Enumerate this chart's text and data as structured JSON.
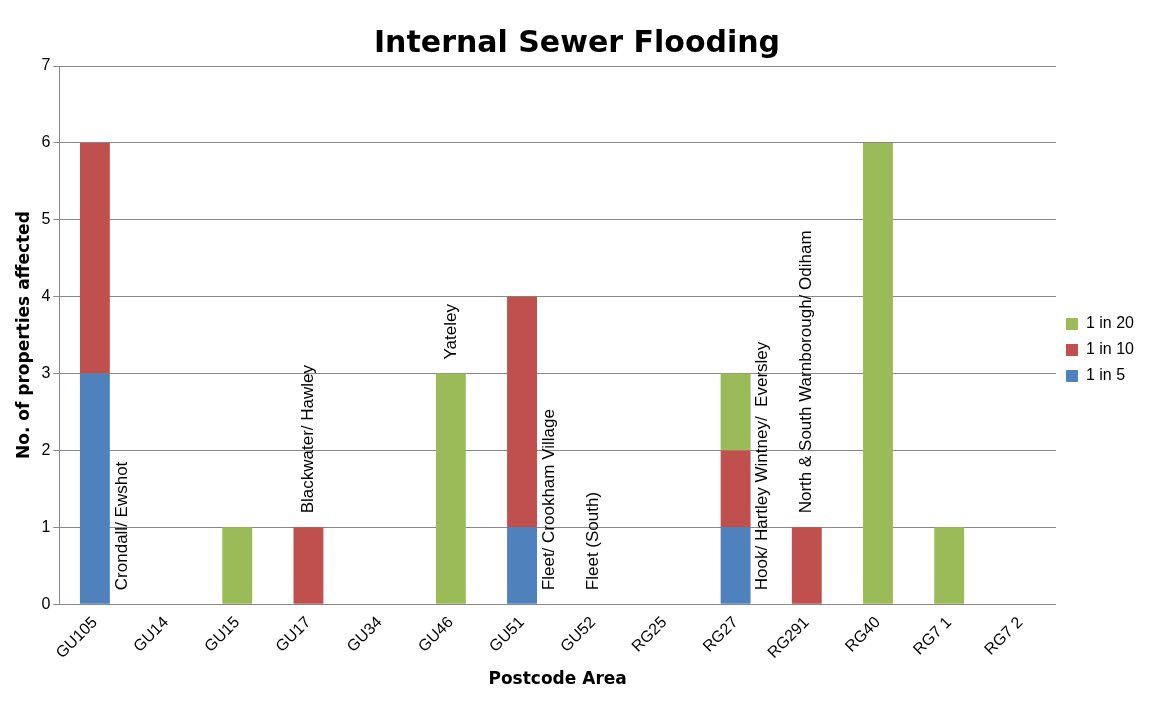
{
  "chart_data": {
    "type": "bar",
    "title": "Internal Sewer Flooding",
    "xlabel": "Postcode Area",
    "ylabel": "No. of properties affected",
    "categories": [
      "GU105",
      "GU14",
      "GU15",
      "GU17",
      "GU34",
      "GU46",
      "GU51",
      "GU52",
      "RG25",
      "RG27",
      "RG291",
      "RG40",
      "RG7 1",
      "RG7 2"
    ],
    "stacked": true,
    "series": [
      {
        "name": "1 in 5",
        "color": "#4f81bd",
        "values": [
          3,
          0,
          0,
          0,
          0,
          0,
          1,
          0,
          0,
          1,
          0,
          0,
          0,
          0
        ]
      },
      {
        "name": "1 in 10",
        "color": "#c0504d",
        "values": [
          3,
          0,
          0,
          1,
          0,
          0,
          3,
          0,
          0,
          1,
          1,
          0,
          0,
          0
        ]
      },
      {
        "name": "1 in 20",
        "color": "#9bbb59",
        "values": [
          0,
          0,
          1,
          0,
          0,
          3,
          0,
          0,
          0,
          1,
          0,
          6,
          1,
          0
        ]
      }
    ],
    "ylim": [
      0,
      7
    ],
    "yticks": [
      0,
      1,
      2,
      3,
      4,
      5,
      6,
      7
    ],
    "grid": "y",
    "legend": "right",
    "annotations": [
      {
        "text": "Crondall/ Ewshot",
        "x": "GU105",
        "y": 0
      },
      {
        "text": "Blackwater/ Hawley",
        "x": "GU17",
        "y": 1
      },
      {
        "text": "Yateley",
        "x": "GU46",
        "y": 3
      },
      {
        "text": "Fleet/ Crookham Village",
        "x": "GU51",
        "y": 0
      },
      {
        "text": "Fleet (South)",
        "x": "GU52",
        "y": 0
      },
      {
        "text": "Hook/ Hartley Wintney/  Eversley",
        "x": "RG27",
        "y": 0
      },
      {
        "text": "North & South Warnborough/ Odiham",
        "x": "RG291",
        "y": 1
      }
    ]
  }
}
